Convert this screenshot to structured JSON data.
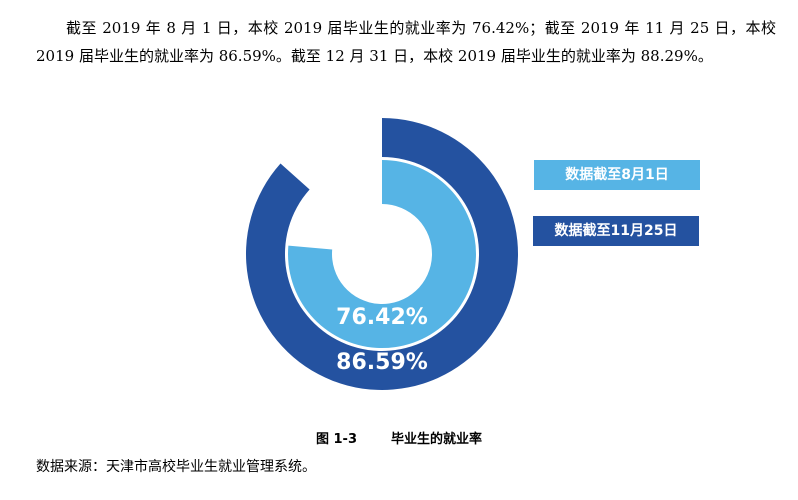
{
  "text": {
    "paragraph": "截至 2019 年 8 月 1 日，本校 2019 届毕业生的就业率为 76.42%；截至 2019 年 11 月 25 日，本校 2019 届毕业生的就业率为 86.59%。截至 12 月 31 日，本校 2019 届毕业生的就业率为 88.29%。",
    "figure_number": "图 1-3",
    "figure_title": "毕业生的就业率",
    "source": "数据来源：天津市高校毕业生就业管理系统。"
  },
  "chart_data": {
    "type": "pie",
    "subtype": "concentric-donut",
    "max": 100,
    "series": [
      {
        "name": "数据截至8月1日",
        "value": 76.42,
        "label": "76.42%",
        "color": "#56b4e5",
        "ring": "inner"
      },
      {
        "name": "数据截至11月25日",
        "value": 86.59,
        "label": "86.59%",
        "color": "#2452a0",
        "ring": "outer"
      }
    ],
    "legend_position": "right"
  }
}
